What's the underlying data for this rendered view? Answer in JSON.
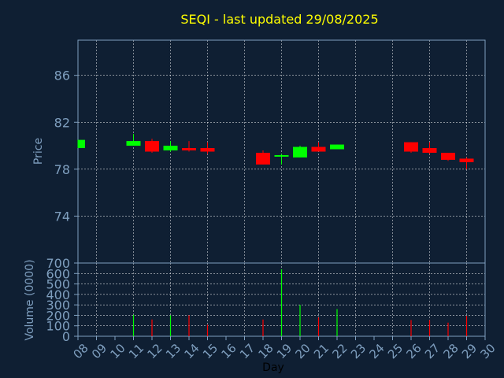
{
  "chart_data": [
    {
      "type": "candlestick",
      "title": "SEQI - last updated 29/08/2025",
      "ylabel": "Price",
      "ylim": [
        70,
        89
      ],
      "yticks": [
        "74",
        "78",
        "82",
        "86"
      ],
      "ytick_values": [
        74,
        78,
        82,
        86
      ],
      "grid": true,
      "colors": {
        "up": "#00ff00",
        "down": "#ff0000",
        "background": "#0f1f33",
        "tick": "#7f9fbf",
        "title": "#ffff00",
        "grid": "#ffffff"
      },
      "candles": [
        {
          "day": 8,
          "open": 79.8,
          "high": 80.5,
          "low": 79.8,
          "close": 80.5
        },
        {
          "day": 11,
          "open": 80.0,
          "high": 81.0,
          "low": 80.0,
          "close": 80.4
        },
        {
          "day": 12,
          "open": 80.4,
          "high": 80.6,
          "low": 79.4,
          "close": 79.5
        },
        {
          "day": 13,
          "open": 79.6,
          "high": 80.4,
          "low": 79.5,
          "close": 80.0
        },
        {
          "day": 14,
          "open": 79.8,
          "high": 80.4,
          "low": 79.5,
          "close": 79.6
        },
        {
          "day": 15,
          "open": 79.8,
          "high": 80.3,
          "low": 79.3,
          "close": 79.5
        },
        {
          "day": 18,
          "open": 79.4,
          "high": 79.6,
          "low": 78.4,
          "close": 78.4
        },
        {
          "day": 19,
          "open": 79.1,
          "high": 79.3,
          "low": 78.4,
          "close": 79.2
        },
        {
          "day": 20,
          "open": 79.0,
          "high": 80.0,
          "low": 79.0,
          "close": 79.9
        },
        {
          "day": 21,
          "open": 79.9,
          "high": 80.3,
          "low": 79.5,
          "close": 79.5
        },
        {
          "day": 22,
          "open": 79.7,
          "high": 80.1,
          "low": 79.7,
          "close": 80.1
        },
        {
          "day": 26,
          "open": 80.3,
          "high": 80.3,
          "low": 79.4,
          "close": 79.5
        },
        {
          "day": 27,
          "open": 79.8,
          "high": 80.3,
          "low": 79.3,
          "close": 79.4
        },
        {
          "day": 28,
          "open": 79.4,
          "high": 79.4,
          "low": 78.7,
          "close": 78.8
        },
        {
          "day": 29,
          "open": 78.9,
          "high": 79.0,
          "low": 78.0,
          "close": 78.6
        }
      ]
    },
    {
      "type": "bar",
      "ylabel": "Volume (0000)",
      "xlabel": "Day",
      "ylim": [
        0,
        700
      ],
      "yticks": [
        "0",
        "100",
        "200",
        "300",
        "400",
        "500",
        "600",
        "700"
      ],
      "ytick_values": [
        0,
        100,
        200,
        300,
        400,
        500,
        600,
        700
      ],
      "xlim": [
        8,
        30
      ],
      "xticks": [
        "08",
        "09",
        "10",
        "11",
        "12",
        "13",
        "14",
        "15",
        "16",
        "17",
        "18",
        "19",
        "20",
        "21",
        "22",
        "23",
        "24",
        "25",
        "26",
        "27",
        "28",
        "29",
        "30"
      ],
      "xtick_values": [
        8,
        9,
        10,
        11,
        12,
        13,
        14,
        15,
        16,
        17,
        18,
        19,
        20,
        21,
        22,
        23,
        24,
        25,
        26,
        27,
        28,
        29,
        30
      ],
      "grid": true,
      "bars": [
        {
          "day": 11,
          "value": 205,
          "color": "#00ff00"
        },
        {
          "day": 12,
          "value": 160,
          "color": "#ff0000"
        },
        {
          "day": 13,
          "value": 200,
          "color": "#00ff00"
        },
        {
          "day": 14,
          "value": 200,
          "color": "#ff0000"
        },
        {
          "day": 15,
          "value": 110,
          "color": "#ff0000"
        },
        {
          "day": 18,
          "value": 160,
          "color": "#ff0000"
        },
        {
          "day": 19,
          "value": 640,
          "color": "#00ff00"
        },
        {
          "day": 20,
          "value": 300,
          "color": "#00ff00"
        },
        {
          "day": 21,
          "value": 180,
          "color": "#ff0000"
        },
        {
          "day": 22,
          "value": 260,
          "color": "#00ff00"
        },
        {
          "day": 26,
          "value": 155,
          "color": "#ff0000"
        },
        {
          "day": 27,
          "value": 155,
          "color": "#ff0000"
        },
        {
          "day": 28,
          "value": 130,
          "color": "#ff0000"
        },
        {
          "day": 29,
          "value": 195,
          "color": "#ff0000"
        }
      ]
    }
  ]
}
